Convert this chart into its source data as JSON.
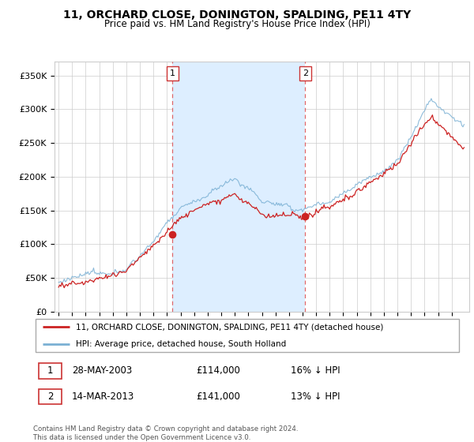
{
  "title": "11, ORCHARD CLOSE, DONINGTON, SPALDING, PE11 4TY",
  "subtitle": "Price paid vs. HM Land Registry's House Price Index (HPI)",
  "ylabel_ticks": [
    "£0",
    "£50K",
    "£100K",
    "£150K",
    "£200K",
    "£250K",
    "£300K",
    "£350K"
  ],
  "ytick_values": [
    0,
    50000,
    100000,
    150000,
    200000,
    250000,
    300000,
    350000
  ],
  "ylim": [
    0,
    370000
  ],
  "xlim_start": 1994.7,
  "xlim_end": 2025.3,
  "sale1_x": 2003.4,
  "sale1_y": 114000,
  "sale2_x": 2013.2,
  "sale2_y": 141000,
  "legend_line1": "11, ORCHARD CLOSE, DONINGTON, SPALDING, PE11 4TY (detached house)",
  "legend_line2": "HPI: Average price, detached house, South Holland",
  "footer": "Contains HM Land Registry data © Crown copyright and database right 2024.\nThis data is licensed under the Open Government Licence v3.0.",
  "line_color_red": "#cc2222",
  "line_color_blue": "#7ab0d4",
  "shade_color": "#ddeeff",
  "plot_bg": "#ffffff",
  "grid_color": "#cccccc",
  "title_fontsize": 10,
  "subtitle_fontsize": 8.5
}
